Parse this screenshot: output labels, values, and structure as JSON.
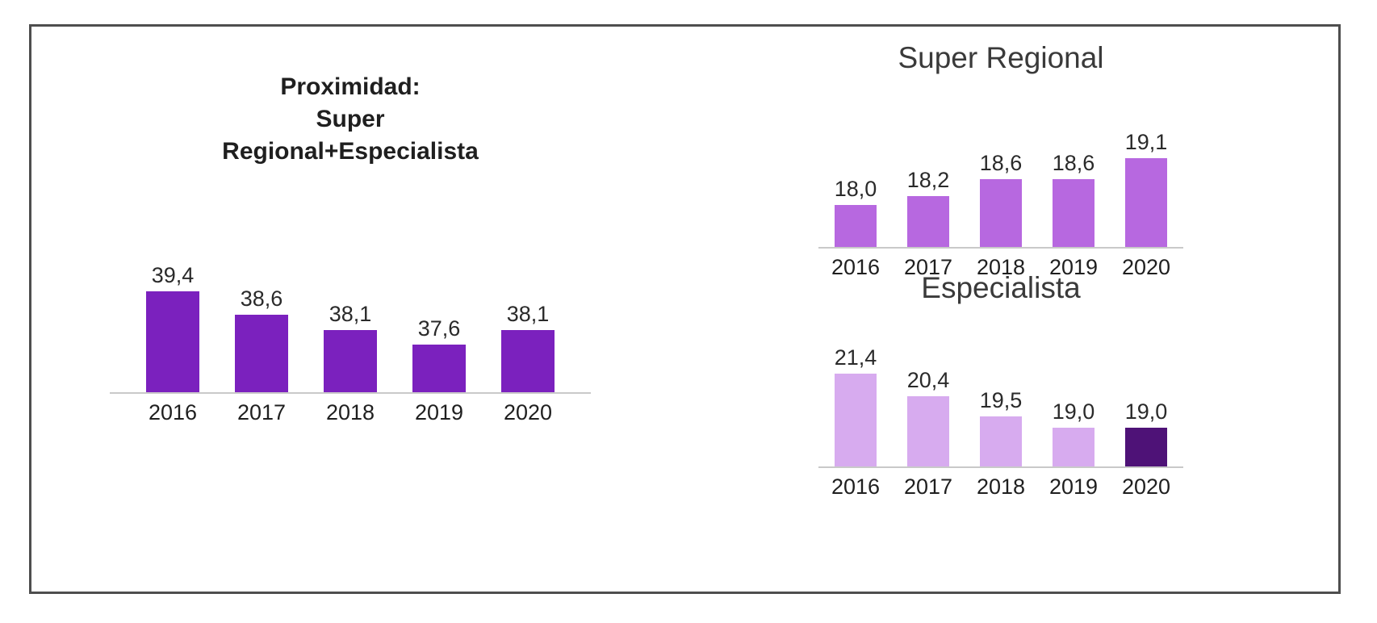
{
  "frame": {
    "border_color": "#4e4e4e",
    "background": "#ffffff"
  },
  "chart_data": [
    {
      "type": "bar",
      "title": "Proximidad:\nSuper\nRegional+Especialista",
      "categories": [
        "2016",
        "2017",
        "2018",
        "2019",
        "2020"
      ],
      "values": [
        39.4,
        38.6,
        38.1,
        37.6,
        38.1
      ],
      "value_labels": [
        "39,4",
        "38,6",
        "38,1",
        "37,6",
        "38,1"
      ],
      "bar_color": "#7B21BE",
      "ylim": [
        36,
        39.4
      ],
      "grid": false,
      "legend": false,
      "value_labels_position": "above-bars"
    },
    {
      "type": "bar",
      "title": "Super Regional",
      "categories": [
        "2016",
        "2017",
        "2018",
        "2019",
        "2020"
      ],
      "values": [
        18.0,
        18.2,
        18.6,
        18.6,
        19.1
      ],
      "value_labels": [
        "18,0",
        "18,2",
        "18,6",
        "18,6",
        "19,1"
      ],
      "bar_color": "#B768E0",
      "ylim": [
        17,
        19.1
      ],
      "grid": false,
      "legend": false,
      "value_labels_position": "above-bars"
    },
    {
      "type": "bar",
      "title": "Especialista",
      "categories": [
        "2016",
        "2017",
        "2018",
        "2019",
        "2020"
      ],
      "values": [
        21.4,
        20.4,
        19.5,
        19.0,
        19.0
      ],
      "value_labels": [
        "21,4",
        "20,4",
        "19,5",
        "19,0",
        "19,0"
      ],
      "bar_color": "#D7ABEF",
      "bar_colors": [
        "#D7ABEF",
        "#D7ABEF",
        "#D7ABEF",
        "#D7ABEF",
        "#4E1277"
      ],
      "highlight_color": "#4E1277",
      "highlight_category": "2020",
      "ylim": [
        17.3,
        21.4
      ],
      "grid": false,
      "legend": false,
      "value_labels_position": "above-bars"
    }
  ]
}
